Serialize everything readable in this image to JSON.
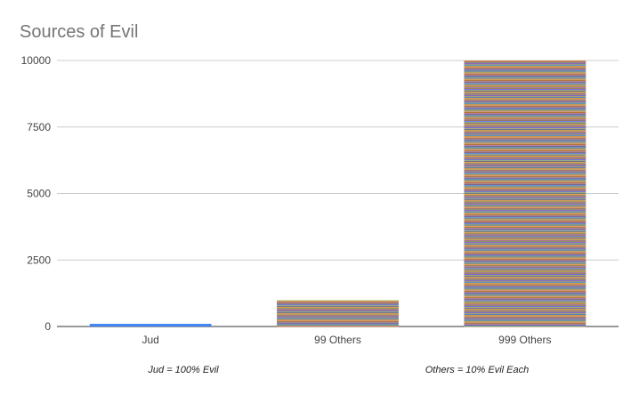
{
  "chart_data": {
    "type": "bar",
    "title": "Sources of Evil",
    "xlabel": "",
    "ylabel": "",
    "ylim": [
      0,
      10000
    ],
    "yticks": [
      0,
      2500,
      5000,
      7500,
      10000
    ],
    "grid": true,
    "legend": "none",
    "stacked": true,
    "categories": [
      "Jud",
      "99 Others",
      "999 Others"
    ],
    "values": [
      100,
      990,
      9990
    ],
    "stack_segments": [
      1,
      99,
      999
    ],
    "segment_value": [
      100,
      10,
      10
    ],
    "annotations": [
      "Jud = 100% Evil",
      "Others = 10% Evil Each"
    ]
  },
  "palette": [
    "#4285f4",
    "#db4437",
    "#f4b400",
    "#0f9d58",
    "#ff6d00",
    "#46bdc6",
    "#7baaf7",
    "#f07b72",
    "#fcd04f",
    "#71c287",
    "#ff994d",
    "#7ed1d7",
    "#3b4fa8",
    "#ab30c4",
    "#e06666",
    "#93c47d",
    "#8e7cc3",
    "#c27ba0",
    "#f6b26b",
    "#6d9eeb",
    "#a64d79",
    "#38761d",
    "#cc4125",
    "#3c78d8"
  ]
}
